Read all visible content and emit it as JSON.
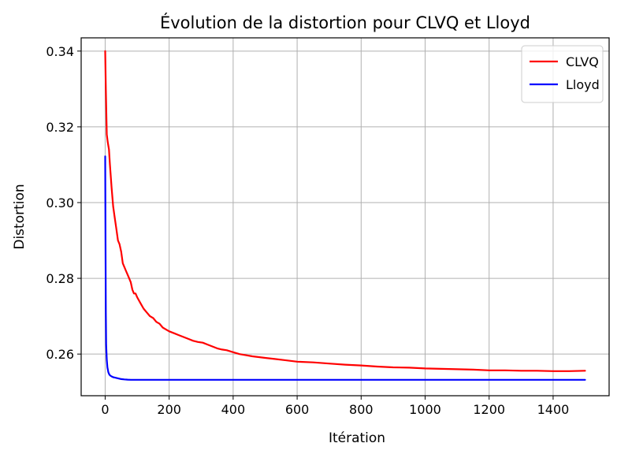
{
  "chart_data": {
    "type": "line",
    "title": "Évolution de la distortion pour CLVQ et Lloyd",
    "xlabel": "Itération",
    "ylabel": "Distortion",
    "xlim": [
      -75,
      1575
    ],
    "ylim": [
      0.249,
      0.3435
    ],
    "grid": true,
    "legend_position": "top-right",
    "xticks": [
      0,
      200,
      400,
      600,
      800,
      1000,
      1200,
      1400
    ],
    "xtick_labels": [
      "0",
      "200",
      "400",
      "600",
      "800",
      "1000",
      "1200",
      "1400"
    ],
    "yticks": [
      0.26,
      0.28,
      0.3,
      0.32,
      0.34
    ],
    "ytick_labels": [
      "0.26",
      "0.28",
      "0.30",
      "0.32",
      "0.34"
    ],
    "series": [
      {
        "name": "CLVQ",
        "color": "#ff0000",
        "x": [
          0,
          2,
          5,
          8,
          12,
          15,
          20,
          25,
          30,
          35,
          40,
          45,
          50,
          55,
          60,
          65,
          70,
          75,
          80,
          85,
          90,
          95,
          100,
          110,
          120,
          130,
          140,
          150,
          160,
          170,
          180,
          190,
          200,
          215,
          230,
          245,
          260,
          275,
          290,
          305,
          320,
          335,
          350,
          365,
          380,
          400,
          420,
          440,
          460,
          480,
          500,
          530,
          560,
          600,
          650,
          700,
          750,
          800,
          850,
          900,
          950,
          1000,
          1050,
          1100,
          1150,
          1200,
          1250,
          1300,
          1350,
          1400,
          1450,
          1500
        ],
        "y": [
          0.34,
          0.33,
          0.318,
          0.316,
          0.314,
          0.31,
          0.304,
          0.299,
          0.296,
          0.293,
          0.29,
          0.289,
          0.287,
          0.284,
          0.283,
          0.282,
          0.281,
          0.28,
          0.279,
          0.277,
          0.276,
          0.276,
          0.275,
          0.2735,
          0.272,
          0.271,
          0.27,
          0.2695,
          0.2685,
          0.268,
          0.267,
          0.2665,
          0.266,
          0.2655,
          0.265,
          0.2645,
          0.264,
          0.2635,
          0.2632,
          0.263,
          0.2625,
          0.262,
          0.2615,
          0.2612,
          0.261,
          0.2605,
          0.26,
          0.2597,
          0.2594,
          0.2592,
          0.259,
          0.2587,
          0.2584,
          0.258,
          0.2578,
          0.2575,
          0.2572,
          0.257,
          0.2567,
          0.2565,
          0.2564,
          0.2562,
          0.2561,
          0.256,
          0.2559,
          0.2557,
          0.2557,
          0.2556,
          0.2556,
          0.2555,
          0.2555,
          0.2556
        ]
      },
      {
        "name": "Lloyd",
        "color": "#0000ff",
        "x": [
          0,
          1,
          2,
          3,
          5,
          7,
          10,
          13,
          16,
          20,
          25,
          30,
          40,
          50,
          60,
          70,
          80,
          100,
          150,
          200,
          300,
          400,
          600,
          800,
          1000,
          1200,
          1400,
          1500
        ],
        "y": [
          0.3122,
          0.29,
          0.271,
          0.2625,
          0.2585,
          0.2565,
          0.2552,
          0.2546,
          0.2543,
          0.2541,
          0.2539,
          0.2538,
          0.2536,
          0.2534,
          0.2533,
          0.25325,
          0.2532,
          0.2532,
          0.2532,
          0.2532,
          0.2532,
          0.2532,
          0.2532,
          0.2532,
          0.2532,
          0.2532,
          0.2532,
          0.2532
        ]
      }
    ]
  }
}
